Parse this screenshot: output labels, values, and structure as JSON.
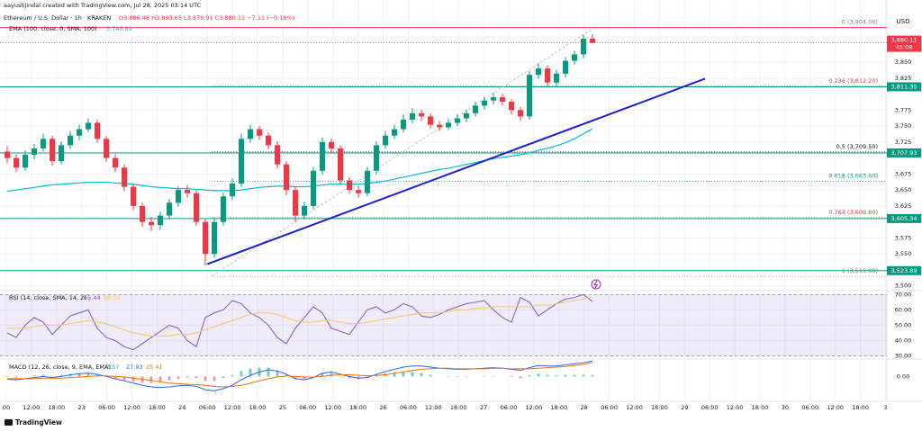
{
  "header": {
    "author": "aayushjindal created with TradingView.com, Jul 28, 2025 03:14 UTC",
    "symbol": "Ethereum / U.S. Dollar · 1h · KRAKEN",
    "ohlc": "O3,886.48 H3,893.65 L3,878.91 C3,880.11 −7.11 (−0.18%)",
    "currency": "USD"
  },
  "time_axis": [
    "00",
    "12:00",
    "18:00",
    "23",
    "06:00",
    "12:00",
    "18:00",
    "24",
    "06:00",
    "12:00",
    "18:00",
    "25",
    "06:00",
    "12:00",
    "18:00",
    "26",
    "06:00",
    "12:00",
    "18:00",
    "27",
    "06:00",
    "12:00",
    "18:00",
    "28",
    "06:00",
    "12:00",
    "18:00",
    "29",
    "06:00",
    "12:00",
    "18:00",
    "30",
    "06:00",
    "12:00",
    "18:00",
    "3"
  ],
  "footer": {
    "brand": "TradingView"
  },
  "chart_data": [
    {
      "type": "candlestick",
      "up_color": "#089981",
      "down_color": "#f23645",
      "grid": true,
      "open": [
        3710,
        3700,
        3685,
        3705,
        3715,
        3730,
        3695,
        3720,
        3735,
        3745,
        3755,
        3730,
        3700,
        3685,
        3655,
        3625,
        3600,
        3595,
        3610,
        3630,
        3650,
        3645,
        3600,
        3550,
        3600,
        3640,
        3660,
        3730,
        3745,
        3735,
        3720,
        3690,
        3650,
        3610,
        3625,
        3680,
        3725,
        3715,
        3665,
        3650,
        3645,
        3680,
        3720,
        3735,
        3745,
        3760,
        3770,
        3765,
        3752,
        3748,
        3755,
        3762,
        3770,
        3782,
        3790,
        3795,
        3788,
        3775,
        3765,
        3830,
        3840,
        3818,
        3832,
        3852,
        3862,
        3886.48
      ],
      "high": [
        3718,
        3706,
        3712,
        3722,
        3738,
        3735,
        3726,
        3742,
        3752,
        3762,
        3760,
        3734,
        3706,
        3690,
        3660,
        3630,
        3608,
        3616,
        3636,
        3656,
        3658,
        3650,
        3605,
        3606,
        3646,
        3668,
        3738,
        3752,
        3750,
        3740,
        3726,
        3695,
        3656,
        3632,
        3686,
        3732,
        3730,
        3720,
        3670,
        3656,
        3686,
        3726,
        3742,
        3752,
        3768,
        3778,
        3776,
        3770,
        3758,
        3762,
        3768,
        3776,
        3788,
        3796,
        3802,
        3800,
        3792,
        3780,
        3836,
        3848,
        3845,
        3838,
        3858,
        3868,
        3892,
        3893.65
      ],
      "low": [
        3692,
        3678,
        3680,
        3698,
        3710,
        3688,
        3690,
        3714,
        3728,
        3740,
        3724,
        3694,
        3678,
        3648,
        3618,
        3592,
        3586,
        3588,
        3604,
        3624,
        3638,
        3594,
        3532,
        3544,
        3594,
        3634,
        3655,
        3724,
        3728,
        3714,
        3684,
        3642,
        3600,
        3604,
        3620,
        3674,
        3708,
        3658,
        3644,
        3638,
        3640,
        3674,
        3714,
        3730,
        3740,
        3754,
        3758,
        3746,
        3742,
        3744,
        3750,
        3756,
        3765,
        3776,
        3784,
        3782,
        3768,
        3758,
        3760,
        3824,
        3812,
        3812,
        3826,
        3846,
        3856,
        3878.91
      ],
      "close": [
        3700,
        3685,
        3705,
        3715,
        3730,
        3695,
        3720,
        3735,
        3745,
        3755,
        3730,
        3700,
        3685,
        3655,
        3625,
        3600,
        3595,
        3610,
        3630,
        3650,
        3645,
        3600,
        3550,
        3600,
        3640,
        3660,
        3730,
        3745,
        3735,
        3720,
        3690,
        3650,
        3610,
        3625,
        3680,
        3725,
        3715,
        3665,
        3650,
        3645,
        3680,
        3720,
        3735,
        3745,
        3760,
        3770,
        3765,
        3752,
        3748,
        3755,
        3762,
        3770,
        3782,
        3790,
        3795,
        3788,
        3775,
        3765,
        3830,
        3840,
        3818,
        3832,
        3852,
        3862,
        3886.48,
        3880.11
      ],
      "ylim": [
        3494,
        3933
      ],
      "yticks": [
        {
          "value": 3850,
          "label": "3,850"
        },
        {
          "value": 3825,
          "label": "3,825"
        },
        {
          "value": 3775,
          "label": "3,775"
        },
        {
          "value": 3750,
          "label": "3,750"
        },
        {
          "value": 3725,
          "label": "3,725"
        },
        {
          "value": 3675,
          "label": "3,675"
        },
        {
          "value": 3650,
          "label": "3,650"
        },
        {
          "value": 3625,
          "label": "3,625"
        },
        {
          "value": 3575,
          "label": "3,575"
        },
        {
          "value": 3550,
          "label": "3,550"
        },
        {
          "value": 3500,
          "label": "3,500"
        }
      ],
      "ema": {
        "name": "EMA (100, close, 0, SMA, 100)",
        "value_label": "3,745.89",
        "color": "#00bcd4",
        "values": [
          3648,
          3650,
          3652,
          3654,
          3656,
          3658,
          3659,
          3660,
          3661,
          3662,
          3662,
          3662,
          3661,
          3660,
          3659,
          3657,
          3655,
          3654,
          3653,
          3652,
          3652,
          3651,
          3650,
          3649,
          3649,
          3649,
          3650,
          3652,
          3654,
          3655,
          3656,
          3656,
          3655,
          3655,
          3656,
          3658,
          3659,
          3659,
          3659,
          3659,
          3660,
          3662,
          3664,
          3667,
          3670,
          3673,
          3676,
          3679,
          3682,
          3684,
          3687,
          3690,
          3693,
          3696,
          3699,
          3701,
          3703,
          3705,
          3708,
          3712,
          3715,
          3719,
          3724,
          3730,
          3738,
          3745.89
        ]
      },
      "last_price": {
        "value": 3880.11,
        "label": "3,880.11",
        "countdown": "45:08",
        "color": "#f23645"
      },
      "levels": {
        "color": "#089981",
        "items": [
          {
            "value": 3811.35,
            "label": "3,811.35"
          },
          {
            "value": 3707.93,
            "label": "3,707.93"
          },
          {
            "value": 3605.34,
            "label": "3,605.34"
          },
          {
            "value": 3523.89,
            "label": "3,523.89"
          }
        ]
      },
      "fib": [
        {
          "value": 3904,
          "label": "0 (3,904.00)",
          "color": "#787b86"
        },
        {
          "value": 3812.2,
          "label": "0.236 (3,812.20)",
          "color": "#f23645"
        },
        {
          "value": 3709.5,
          "label": "0.5 (3,709.50)",
          "color": "#131722"
        },
        {
          "value": 3663.6,
          "label": "0.618 (3,663.60)",
          "color": "#089981"
        },
        {
          "value": 3606.8,
          "label": "0.764 (3,606.80)",
          "color": "#f23645"
        },
        {
          "value": 3515,
          "label": "1 (3,515.00)",
          "color": "#787b86"
        }
      ],
      "top_line_color": "#f23645",
      "trendline": {
        "y": [
          3534,
          3824
        ],
        "color": "#1e22c8"
      }
    },
    {
      "type": "line",
      "label": "RSI (14, close, SMA, 14, 2)",
      "legend_values": [
        "65.44",
        "68.50"
      ],
      "band": [
        30,
        70
      ],
      "band_color": "#7e57c2",
      "ylim": [
        28,
        72.5
      ],
      "yticks": [
        {
          "value": 70,
          "label": "70.00"
        },
        {
          "value": 60,
          "label": "60.00"
        },
        {
          "value": 50,
          "label": "50.00"
        },
        {
          "value": 40,
          "label": "40.00"
        },
        {
          "value": 30,
          "label": "30.00"
        }
      ],
      "series": [
        {
          "color": "#7e57c2",
          "values": [
            45,
            42,
            50,
            55,
            52,
            44,
            50,
            56,
            58,
            60,
            48,
            42,
            40,
            36,
            34,
            38,
            42,
            46,
            50,
            48,
            40,
            36,
            55,
            58,
            60,
            66,
            64,
            58,
            55,
            50,
            42,
            38,
            48,
            55,
            62,
            58,
            48,
            46,
            44,
            52,
            60,
            62,
            58,
            60,
            64,
            62,
            56,
            55,
            57,
            60,
            62,
            64,
            65,
            66,
            60,
            55,
            52,
            68,
            65,
            56,
            60,
            64,
            67,
            68,
            70,
            65.44
          ]
        },
        {
          "color": "#f7c56b",
          "values": [
            48,
            48,
            48,
            49,
            50,
            50,
            50,
            51,
            52,
            53,
            52,
            51,
            49,
            47,
            45,
            44,
            43,
            43,
            43,
            44,
            44,
            45,
            47,
            49,
            51,
            53,
            55,
            57,
            58,
            58,
            57,
            55,
            53,
            52,
            52,
            53,
            53,
            52,
            51,
            51,
            52,
            53,
            54,
            55,
            56,
            57,
            58,
            58,
            58,
            59,
            60,
            60,
            61,
            61,
            62,
            62,
            62,
            62,
            62,
            63,
            63,
            64,
            65,
            66,
            67,
            68.5
          ]
        }
      ]
    },
    {
      "type": "macd",
      "label": "MACD (12, 26, close, 9, EMA, EMA)",
      "legend_values": [
        "2.57",
        "27.93",
        "25.41"
      ],
      "ylim": [
        -45,
        30
      ],
      "yticks": [
        {
          "value": 0,
          "label": "0.00"
        }
      ],
      "histogram": {
        "color": "#26a69a",
        "negative_color": "#ef5350",
        "values": [
          -1,
          -2,
          0,
          2,
          3,
          1,
          3,
          5,
          6,
          6,
          3,
          -1,
          -4,
          -7,
          -9,
          -11,
          -12,
          -10,
          -7,
          -4,
          -2,
          -3,
          -8,
          -8,
          -3,
          2,
          10,
          14,
          16,
          16,
          11,
          3,
          -4,
          -5,
          -1,
          6,
          6,
          1,
          -3,
          -5,
          -3,
          2,
          6,
          7,
          9,
          8,
          6,
          3,
          0,
          -1,
          -1,
          -1,
          0,
          1,
          1,
          0,
          -1,
          -3,
          2,
          5,
          3,
          2,
          3,
          3,
          3,
          2.57
        ]
      },
      "series": [
        {
          "color": "#2962ff",
          "values": [
            -5,
            -6,
            -4,
            -2,
            0,
            -2,
            0,
            3,
            5,
            6,
            4,
            0,
            -4,
            -8,
            -12,
            -16,
            -19,
            -20,
            -19,
            -17,
            -16,
            -18,
            -24,
            -26,
            -22,
            -16,
            -6,
            2,
            8,
            12,
            10,
            4,
            -4,
            -6,
            -2,
            6,
            8,
            4,
            0,
            -3,
            -2,
            4,
            9,
            13,
            17,
            19,
            19,
            17,
            15,
            14,
            13,
            13,
            14,
            15,
            16,
            15,
            13,
            11,
            16,
            20,
            19,
            19,
            21,
            23,
            25,
            27.93
          ]
        },
        {
          "color": "#ff6d00",
          "values": [
            -4,
            -4,
            -4,
            -4,
            -3,
            -3,
            -3,
            -2,
            -1,
            0,
            1,
            1,
            0,
            -1,
            -3,
            -5,
            -7,
            -10,
            -12,
            -13,
            -14,
            -15,
            -16,
            -18,
            -19,
            -18,
            -16,
            -12,
            -8,
            -4,
            -1,
            1,
            0,
            -1,
            -1,
            0,
            2,
            3,
            3,
            2,
            1,
            2,
            3,
            6,
            8,
            11,
            13,
            14,
            15,
            15,
            14,
            14,
            14,
            14,
            15,
            15,
            14,
            14,
            14,
            15,
            16,
            17,
            18,
            20,
            22,
            25.41
          ]
        }
      ]
    }
  ]
}
